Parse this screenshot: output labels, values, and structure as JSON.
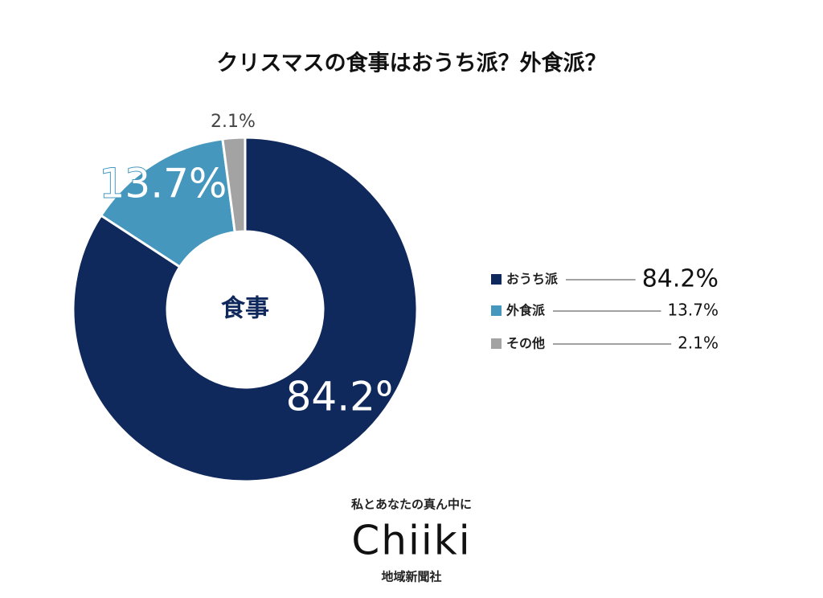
{
  "chart_data": {
    "type": "pie",
    "title": "クリスマスの食事はおうち派？外食派？",
    "center_label": "食事",
    "categories": [
      "おうち派",
      "外食派",
      "その他"
    ],
    "values": [
      84.2,
      13.7,
      2.1
    ],
    "value_labels": [
      "84.2%",
      "13.7%",
      "2.1%"
    ],
    "colors": [
      "#10295c",
      "#4597bd",
      "#a3a3a3"
    ],
    "legend": "right"
  },
  "branding": {
    "tagline": "私とあなたの真ん中に",
    "logo": "Chiiki",
    "company": "地域新聞社"
  }
}
